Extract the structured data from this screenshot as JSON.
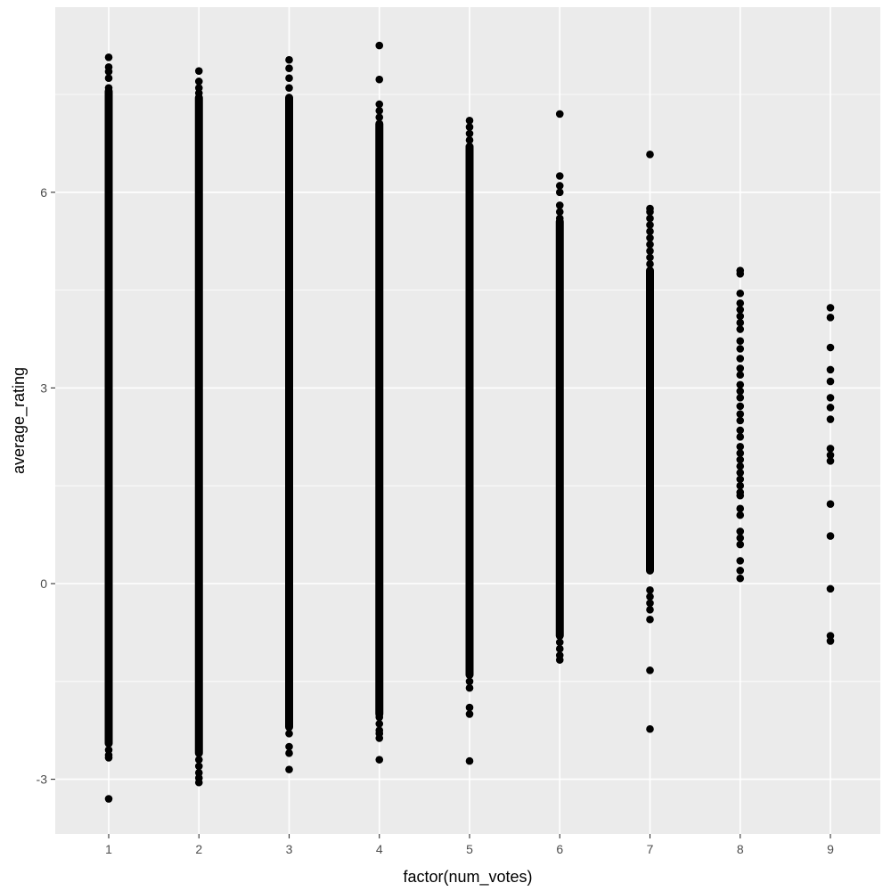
{
  "chart_data": {
    "type": "scatter",
    "title": "",
    "xlabel": "factor(num_votes)",
    "ylabel": "average_rating",
    "categories": [
      "1",
      "2",
      "3",
      "4",
      "5",
      "6",
      "7",
      "8",
      "9"
    ],
    "ylim": [
      -3.85,
      8.55
    ],
    "yticks": [
      -3,
      0,
      3,
      6
    ],
    "yticks_minor": [
      -1.5,
      1.5,
      4.5,
      7.5
    ],
    "ytick_labels": [
      "-3",
      "0",
      "3",
      "6"
    ],
    "grid": true,
    "legend": "none",
    "colors": {
      "panel": "#ebebeb",
      "grid": "#ffffff",
      "point": "#000000",
      "text": "#4d4d4d"
    },
    "series": [
      {
        "name": "1",
        "dense_range": [
          -2.45,
          7.55
        ],
        "points": [
          8.07,
          7.92,
          7.85,
          7.75,
          7.6,
          -2.55,
          -2.63,
          -2.67,
          -3.3
        ]
      },
      {
        "name": "2",
        "dense_range": [
          -2.6,
          7.45
        ],
        "points": [
          7.86,
          7.7,
          7.6,
          7.52,
          -2.7,
          -2.8,
          -2.9,
          -2.98,
          -3.05
        ]
      },
      {
        "name": "3",
        "dense_range": [
          -2.2,
          7.45
        ],
        "points": [
          8.03,
          7.9,
          7.75,
          7.6,
          -2.3,
          -2.5,
          -2.6,
          -2.85
        ]
      },
      {
        "name": "4",
        "dense_range": [
          -2.0,
          7.05
        ],
        "points": [
          8.25,
          7.73,
          7.35,
          7.25,
          7.15,
          -2.05,
          -2.15,
          -2.25,
          -2.3,
          -2.37,
          -2.7
        ]
      },
      {
        "name": "5",
        "dense_range": [
          -1.4,
          6.7
        ],
        "points": [
          7.1,
          7.0,
          6.9,
          6.8,
          -1.5,
          -1.6,
          -1.9,
          -2.0,
          -2.72
        ]
      },
      {
        "name": "6",
        "dense_range": [
          -0.8,
          5.55
        ],
        "points": [
          7.2,
          6.25,
          6.1,
          6.0,
          5.8,
          5.7,
          5.6,
          -0.9,
          -1.0,
          -1.1,
          -1.17
        ]
      },
      {
        "name": "7",
        "dense_range": [
          0.2,
          4.8
        ],
        "points": [
          6.58,
          5.75,
          5.7,
          5.6,
          5.5,
          5.4,
          5.3,
          5.2,
          5.1,
          5.0,
          4.9,
          -0.1,
          -0.2,
          -0.3,
          -0.4,
          -0.55,
          -1.33,
          -2.23
        ]
      },
      {
        "name": "8",
        "points": [
          4.8,
          4.75,
          4.45,
          4.3,
          4.2,
          4.1,
          4.0,
          3.9,
          3.72,
          3.6,
          3.45,
          3.3,
          3.2,
          3.05,
          2.95,
          2.85,
          2.72,
          2.6,
          2.5,
          2.35,
          2.25,
          2.1,
          2.0,
          1.9,
          1.8,
          1.7,
          1.6,
          1.5,
          1.4,
          1.35,
          1.15,
          1.05,
          0.8,
          0.7,
          0.6,
          0.35,
          0.2,
          0.08
        ]
      },
      {
        "name": "9",
        "points": [
          4.23,
          4.08,
          3.62,
          3.28,
          3.1,
          2.85,
          2.7,
          2.52,
          2.07,
          1.97,
          1.88,
          1.22,
          0.73,
          -0.08,
          -0.8,
          -0.88
        ]
      }
    ]
  }
}
